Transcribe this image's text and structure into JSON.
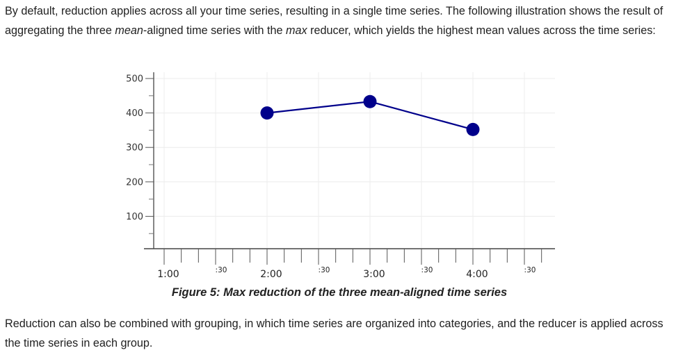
{
  "intro": {
    "before_mean": "By default, reduction applies across all your time series, resulting in a single time series. The following illustration shows the result of aggregating the three ",
    "mean": "mean",
    "between": "-aligned time series with the ",
    "max": "max",
    "after": " reducer, which yields the highest mean values across the time series:"
  },
  "chart_data": {
    "type": "line",
    "title": "",
    "xlabel": "",
    "ylabel": "",
    "y_ticks": [
      100,
      200,
      300,
      400,
      500
    ],
    "y_tick_labels": [
      "100",
      "200",
      "300",
      "400",
      "500"
    ],
    "x_tick_labels": [
      "1:00",
      ":30",
      "2:00",
      ":30",
      "3:00",
      ":30",
      "4:00",
      ":30"
    ],
    "xlim": [
      "1:00",
      "4:35"
    ],
    "ylim": [
      0,
      520
    ],
    "grid": true,
    "color": "#00008B",
    "series": [
      {
        "points": [
          {
            "x": "2:00",
            "y": 400
          },
          {
            "x": "3:00",
            "y": 433
          },
          {
            "x": "4:00",
            "y": 352
          }
        ]
      }
    ]
  },
  "caption": "Figure 5: Max reduction of the three mean-aligned time series",
  "outro": "Reduction can also be combined with grouping, in which time series are organized into categories, and the reducer is applied across the time series in each group."
}
